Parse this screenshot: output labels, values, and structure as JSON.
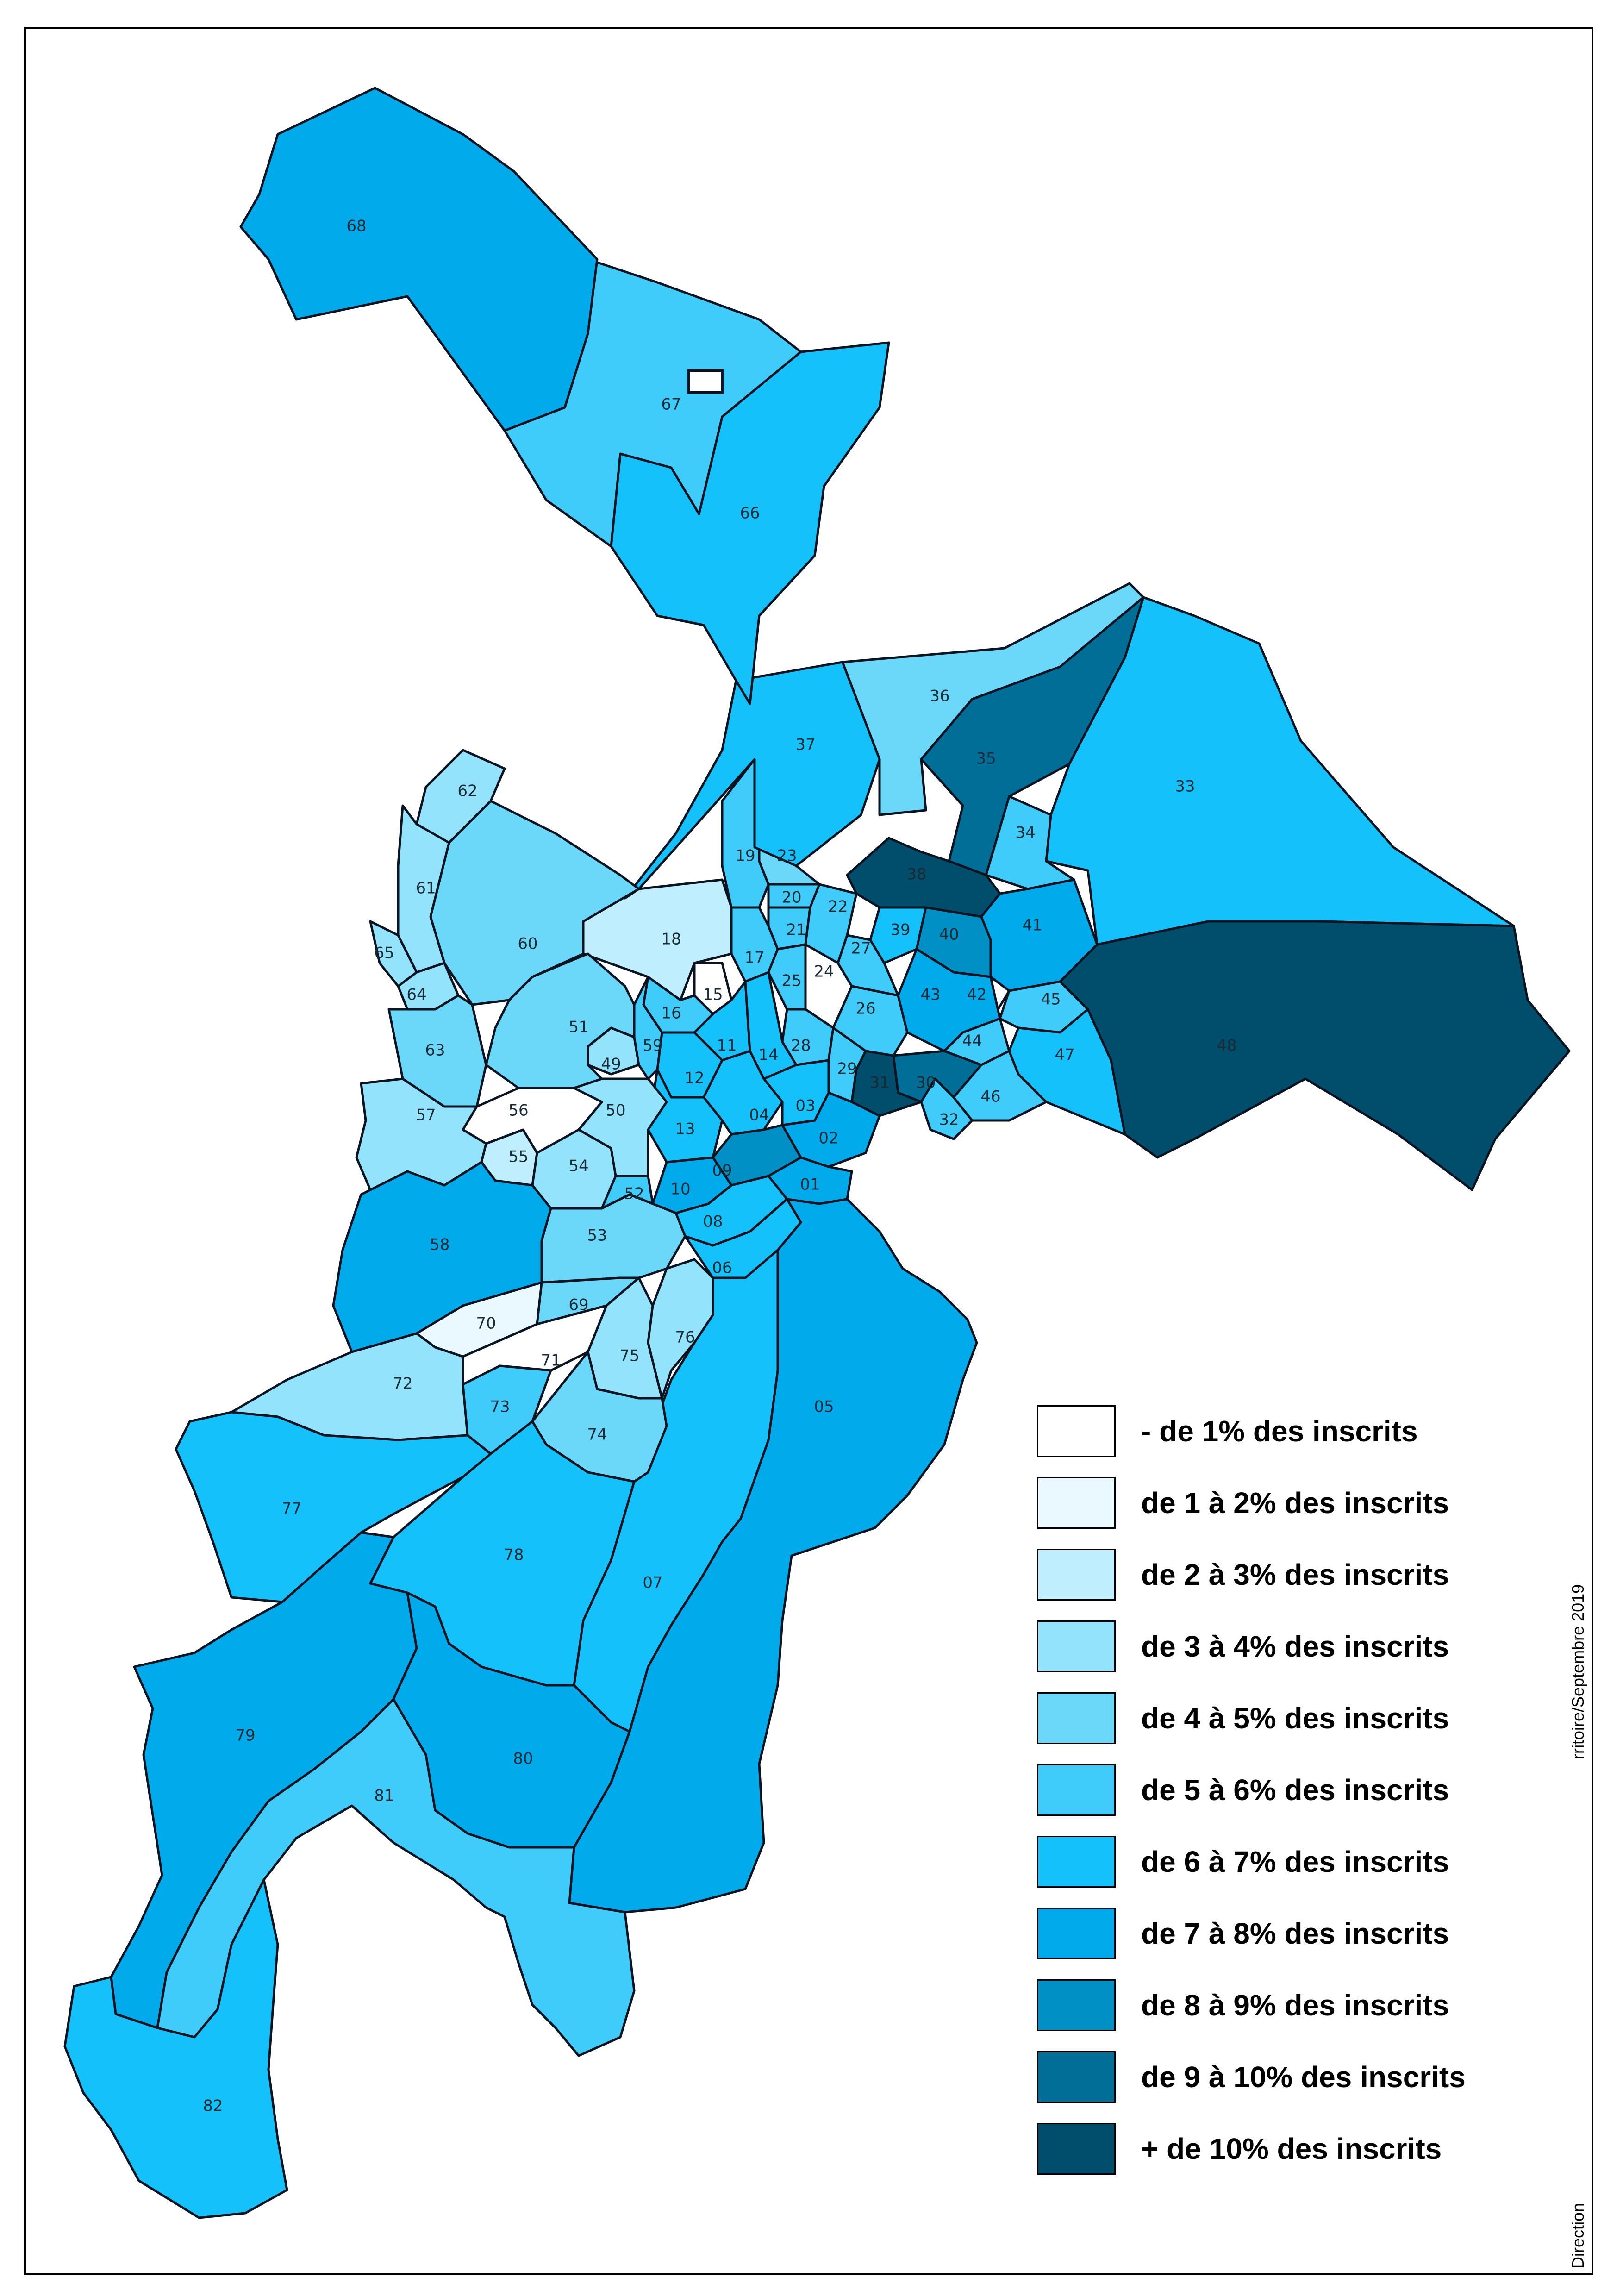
{
  "legend": {
    "items": [
      {
        "label": "- de 1% des inscrits",
        "color": "#ffffff"
      },
      {
        "label": "de 1 à 2% des inscrits",
        "color": "#e9f9ff"
      },
      {
        "label": "de 2 à 3% des inscrits",
        "color": "#bfeeff"
      },
      {
        "label": "de 3 à 4% des inscrits",
        "color": "#93e3fc"
      },
      {
        "label": "de 4 à 5% des inscrits",
        "color": "#6bd8fa"
      },
      {
        "label": "de 5 à 6% des inscrits",
        "color": "#40ccfb"
      },
      {
        "label": "de 6 à 7% des inscrits",
        "color": "#14c1fb"
      },
      {
        "label": "de 7 à 8% des inscrits",
        "color": "#00aaeb"
      },
      {
        "label": "de 8 à 9% des inscrits",
        "color": "#0090c5"
      },
      {
        "label": "de 9 à 10% des inscrits",
        "color": "#006e96"
      },
      {
        "label": "+ de 10% des inscrits",
        "color": "#004e6c"
      }
    ]
  },
  "credits": {
    "date_line": "rritoire/Septembre 2019",
    "service_line": "Direction"
  },
  "districts": [
    {
      "id": "01",
      "cls": 7
    },
    {
      "id": "02",
      "cls": 7
    },
    {
      "id": "03",
      "cls": 6
    },
    {
      "id": "04",
      "cls": 6
    },
    {
      "id": "05",
      "cls": 7
    },
    {
      "id": "06",
      "cls": 6
    },
    {
      "id": "07",
      "cls": 6
    },
    {
      "id": "08",
      "cls": 6
    },
    {
      "id": "09",
      "cls": 8
    },
    {
      "id": "10",
      "cls": 7
    },
    {
      "id": "11",
      "cls": 6
    },
    {
      "id": "12",
      "cls": 6
    },
    {
      "id": "13",
      "cls": 6
    },
    {
      "id": "14",
      "cls": 6
    },
    {
      "id": "15",
      "cls": 0
    },
    {
      "id": "16",
      "cls": 5
    },
    {
      "id": "17",
      "cls": 5
    },
    {
      "id": "18",
      "cls": 2
    },
    {
      "id": "19",
      "cls": 5
    },
    {
      "id": "20",
      "cls": 5
    },
    {
      "id": "21",
      "cls": 5
    },
    {
      "id": "22",
      "cls": 5
    },
    {
      "id": "23",
      "cls": 4
    },
    {
      "id": "24",
      "cls": 0
    },
    {
      "id": "25",
      "cls": 5
    },
    {
      "id": "26",
      "cls": 5
    },
    {
      "id": "27",
      "cls": 5
    },
    {
      "id": "28",
      "cls": 5
    },
    {
      "id": "29",
      "cls": 5
    },
    {
      "id": "30",
      "cls": 9
    },
    {
      "id": "31",
      "cls": 10
    },
    {
      "id": "32",
      "cls": 5
    },
    {
      "id": "33",
      "cls": 6
    },
    {
      "id": "34",
      "cls": 5
    },
    {
      "id": "35",
      "cls": 9
    },
    {
      "id": "36",
      "cls": 4
    },
    {
      "id": "37",
      "cls": 6
    },
    {
      "id": "38",
      "cls": 10
    },
    {
      "id": "39",
      "cls": 6
    },
    {
      "id": "40",
      "cls": 8
    },
    {
      "id": "41",
      "cls": 7
    },
    {
      "id": "42",
      "cls": 0
    },
    {
      "id": "43",
      "cls": 7
    },
    {
      "id": "44",
      "cls": 5
    },
    {
      "id": "45",
      "cls": 5
    },
    {
      "id": "46",
      "cls": 5
    },
    {
      "id": "47",
      "cls": 6
    },
    {
      "id": "48",
      "cls": 10
    },
    {
      "id": "49",
      "cls": 3
    },
    {
      "id": "50",
      "cls": 3
    },
    {
      "id": "51",
      "cls": 4
    },
    {
      "id": "52",
      "cls": 5
    },
    {
      "id": "53",
      "cls": 4
    },
    {
      "id": "54",
      "cls": 3
    },
    {
      "id": "55",
      "cls": 2
    },
    {
      "id": "56",
      "cls": 0
    },
    {
      "id": "57",
      "cls": 3
    },
    {
      "id": "58",
      "cls": 7
    },
    {
      "id": "59",
      "cls": 5
    },
    {
      "id": "60",
      "cls": 4
    },
    {
      "id": "61",
      "cls": 3
    },
    {
      "id": "62",
      "cls": 3
    },
    {
      "id": "63",
      "cls": 4
    },
    {
      "id": "64",
      "cls": 3
    },
    {
      "id": "65",
      "cls": 3
    },
    {
      "id": "66",
      "cls": 6
    },
    {
      "id": "67",
      "cls": 5
    },
    {
      "id": "68",
      "cls": 7
    },
    {
      "id": "69",
      "cls": 4
    },
    {
      "id": "70",
      "cls": 1
    },
    {
      "id": "71",
      "cls": 0
    },
    {
      "id": "72",
      "cls": 3
    },
    {
      "id": "73",
      "cls": 5
    },
    {
      "id": "74",
      "cls": 4
    },
    {
      "id": "75",
      "cls": 3
    },
    {
      "id": "76",
      "cls": 3
    },
    {
      "id": "77",
      "cls": 6
    },
    {
      "id": "78",
      "cls": 6
    },
    {
      "id": "79",
      "cls": 7
    },
    {
      "id": "80",
      "cls": 7
    },
    {
      "id": "81",
      "cls": 5
    },
    {
      "id": "82",
      "cls": 6
    }
  ]
}
